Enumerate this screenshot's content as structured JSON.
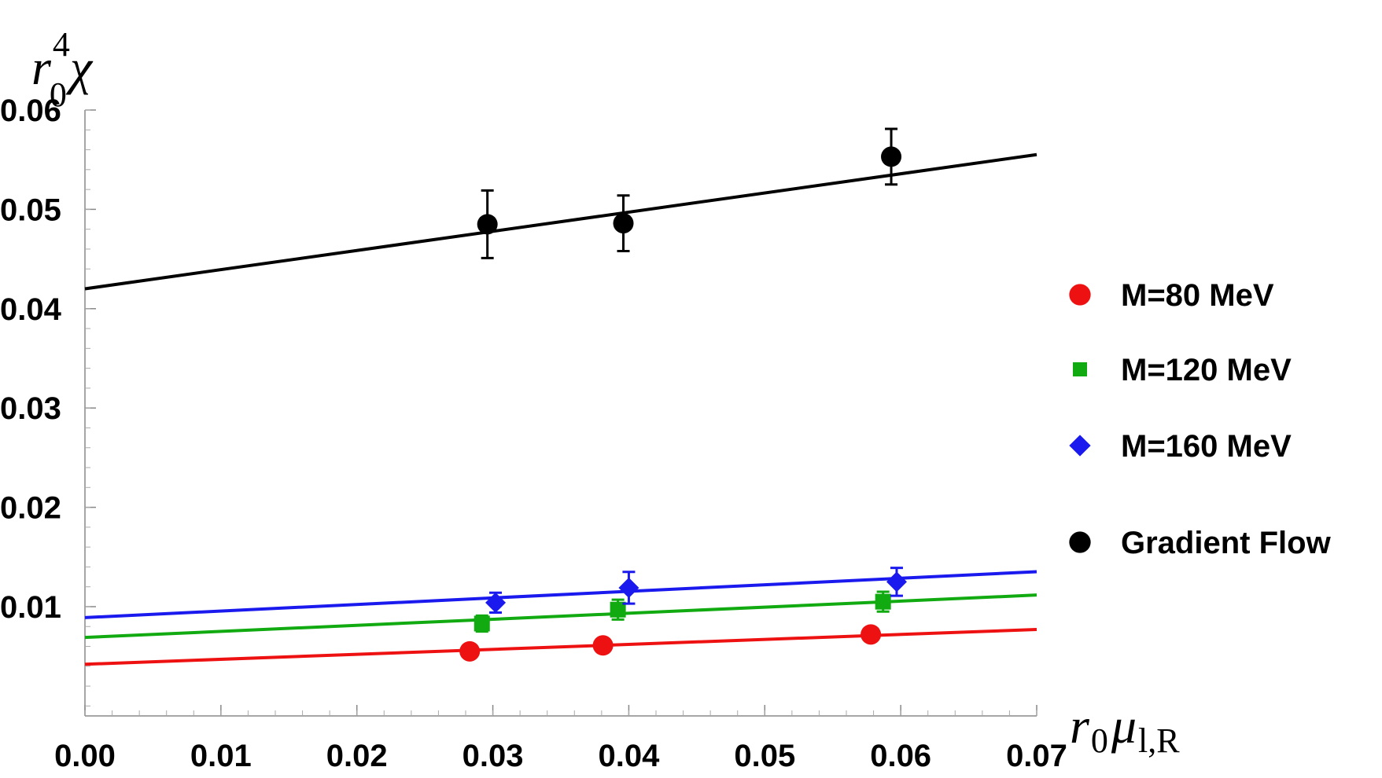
{
  "chart_data": {
    "type": "scatter",
    "title": "",
    "xlabel": {
      "base": "r",
      "sub1": "0",
      "main": "μ",
      "sub2": "l,R"
    },
    "ylabel": {
      "base": "r",
      "sup": "4",
      "sub": "0",
      "main": "χ"
    },
    "xlim": [
      0,
      0.07
    ],
    "ylim": [
      -0.001,
      0.06
    ],
    "xticks": [
      "0.00",
      "0.01",
      "0.02",
      "0.03",
      "0.04",
      "0.05",
      "0.06",
      "0.07"
    ],
    "yticks": [
      "0.01",
      "0.02",
      "0.03",
      "0.04",
      "0.05",
      "0.06"
    ],
    "grid": false,
    "legend_position": "right",
    "series": [
      {
        "name": "M=80 MeV",
        "color": "#ee1111",
        "marker": "circle",
        "points": [
          {
            "x": 0.0283,
            "y": 0.0055,
            "err": 0.0004
          },
          {
            "x": 0.0381,
            "y": 0.0061,
            "err": 0.0004
          },
          {
            "x": 0.0578,
            "y": 0.0072,
            "err": 0.0005
          }
        ],
        "fit": {
          "intercept": 0.0042,
          "slope": 0.05
        }
      },
      {
        "name": "M=120 MeV",
        "color": "#11aa11",
        "marker": "square",
        "points": [
          {
            "x": 0.0292,
            "y": 0.0083,
            "err": 0.0008
          },
          {
            "x": 0.0392,
            "y": 0.0097,
            "err": 0.001
          },
          {
            "x": 0.0587,
            "y": 0.0105,
            "err": 0.001
          }
        ],
        "fit": {
          "intercept": 0.0069,
          "slope": 0.061
        }
      },
      {
        "name": "M=160 MeV",
        "color": "#1a1aee",
        "marker": "diamond",
        "points": [
          {
            "x": 0.0302,
            "y": 0.0104,
            "err": 0.001
          },
          {
            "x": 0.04,
            "y": 0.0119,
            "err": 0.0016
          },
          {
            "x": 0.0597,
            "y": 0.0125,
            "err": 0.0014
          }
        ],
        "fit": {
          "intercept": 0.0089,
          "slope": 0.066
        }
      },
      {
        "name": "Gradient Flow",
        "color": "#000000",
        "marker": "circle",
        "points": [
          {
            "x": 0.0296,
            "y": 0.0485,
            "err": 0.0034
          },
          {
            "x": 0.0396,
            "y": 0.0486,
            "err": 0.0028
          },
          {
            "x": 0.0593,
            "y": 0.0553,
            "err": 0.0028
          }
        ],
        "fit": {
          "intercept": 0.042,
          "slope": 0.193
        }
      }
    ]
  }
}
